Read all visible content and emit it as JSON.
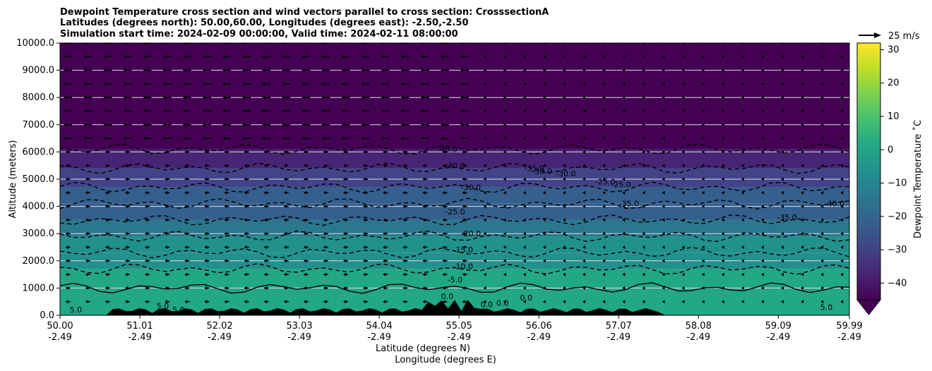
{
  "chart_data": {
    "type": "heatmap",
    "title_lines": [
      "Dewpoint Temperature cross section and wind vectors parallel to cross section: CrosssectionA",
      "Latitudes (degrees north): 50.00,60.00, Longitudes (degrees east): -2.50,-2.50",
      "Simulation start time: 2024-02-09 00:00:00, Valid time: 2024-02-11 08:00:00"
    ],
    "ylabel": "Altitude (meters)",
    "xlabel_lines": [
      "Latitude (degrees N)",
      "Longitude (degrees E)"
    ],
    "ylim": [
      0,
      10000
    ],
    "y_ticks": [
      0,
      1000,
      2000,
      3000,
      4000,
      5000,
      6000,
      7000,
      8000,
      9000,
      10000
    ],
    "y_tick_labels": [
      "0.0",
      "1000.0",
      "2000.0",
      "3000.0",
      "4000.0",
      "5000.0",
      "6000.0",
      "7000.0",
      "8000.0",
      "9000.0",
      "10000.0"
    ],
    "grid": "horizontal",
    "x_ticks": [
      {
        "lat": "50.00",
        "lon": "-2.49"
      },
      {
        "lat": "51.01",
        "lon": "-2.49"
      },
      {
        "lat": "52.02",
        "lon": "-2.49"
      },
      {
        "lat": "53.03",
        "lon": "-2.49"
      },
      {
        "lat": "54.04",
        "lon": "-2.49"
      },
      {
        "lat": "55.05",
        "lon": "-2.49"
      },
      {
        "lat": "56.06",
        "lon": "-2.49"
      },
      {
        "lat": "57.07",
        "lon": "-2.49"
      },
      {
        "lat": "58.08",
        "lon": "-2.49"
      },
      {
        "lat": "59.09",
        "lon": "-2.49"
      },
      {
        "lat": "59.99",
        "lon": "-2.49"
      }
    ],
    "xlim": [
      50.0,
      59.99
    ],
    "colorbar": {
      "label": "Dewpoint Temperature ˚C",
      "range": [
        -45,
        32
      ],
      "ticks": [
        -40,
        -30,
        -20,
        -10,
        0,
        10,
        20,
        30
      ],
      "tick_labels": [
        "−40",
        "−30",
        "−20",
        "−10",
        "0",
        "10",
        "20",
        "30"
      ],
      "extend": "min",
      "colors": [
        "#440154",
        "#482475",
        "#414487",
        "#355f8d",
        "#2a788e",
        "#21918c",
        "#22a884",
        "#44bf70",
        "#7ad151",
        "#bddf26",
        "#fde725"
      ]
    },
    "quiver_key": {
      "label": "25 m/s",
      "speed": 25
    },
    "contour_labels": [
      {
        "text": "-40.0",
        "lat": 54.9,
        "alt": 6000
      },
      {
        "text": "-40.0",
        "lat": 55.0,
        "alt": 5400
      },
      {
        "text": "-35.0",
        "lat": 56.0,
        "alt": 5300
      },
      {
        "text": "-30.0",
        "lat": 56.1,
        "alt": 5200
      },
      {
        "text": "-30.0",
        "lat": 56.4,
        "alt": 5100
      },
      {
        "text": "-30.0",
        "lat": 55.2,
        "alt": 4600
      },
      {
        "text": "-25.0",
        "lat": 55.0,
        "alt": 3700
      },
      {
        "text": "-25.0",
        "lat": 56.9,
        "alt": 4800
      },
      {
        "text": "-25.0",
        "lat": 57.1,
        "alt": 4700
      },
      {
        "text": "-35.0",
        "lat": 57.2,
        "alt": 4000
      },
      {
        "text": "-35.0",
        "lat": 59.2,
        "alt": 3500
      },
      {
        "text": "-40.0",
        "lat": 59.8,
        "alt": 4000
      },
      {
        "text": "-20.0",
        "lat": 55.2,
        "alt": 2900
      },
      {
        "text": "-15.0",
        "lat": 55.1,
        "alt": 2300
      },
      {
        "text": "-10.0",
        "lat": 55.1,
        "alt": 1700
      },
      {
        "text": "-5.0",
        "lat": 55.0,
        "alt": 1200
      },
      {
        "text": "0.0",
        "lat": 54.9,
        "alt": 600
      },
      {
        "text": "0.0",
        "lat": 55.4,
        "alt": 300
      },
      {
        "text": "0.0",
        "lat": 55.6,
        "alt": 350
      },
      {
        "text": "0.0",
        "lat": 55.9,
        "alt": 550
      },
      {
        "text": "5.0",
        "lat": 50.2,
        "alt": 100
      },
      {
        "text": "5.0",
        "lat": 51.3,
        "alt": 250
      },
      {
        "text": "5.0",
        "lat": 51.5,
        "alt": 100
      },
      {
        "text": "5.0",
        "lat": 59.7,
        "alt": 200
      }
    ]
  }
}
